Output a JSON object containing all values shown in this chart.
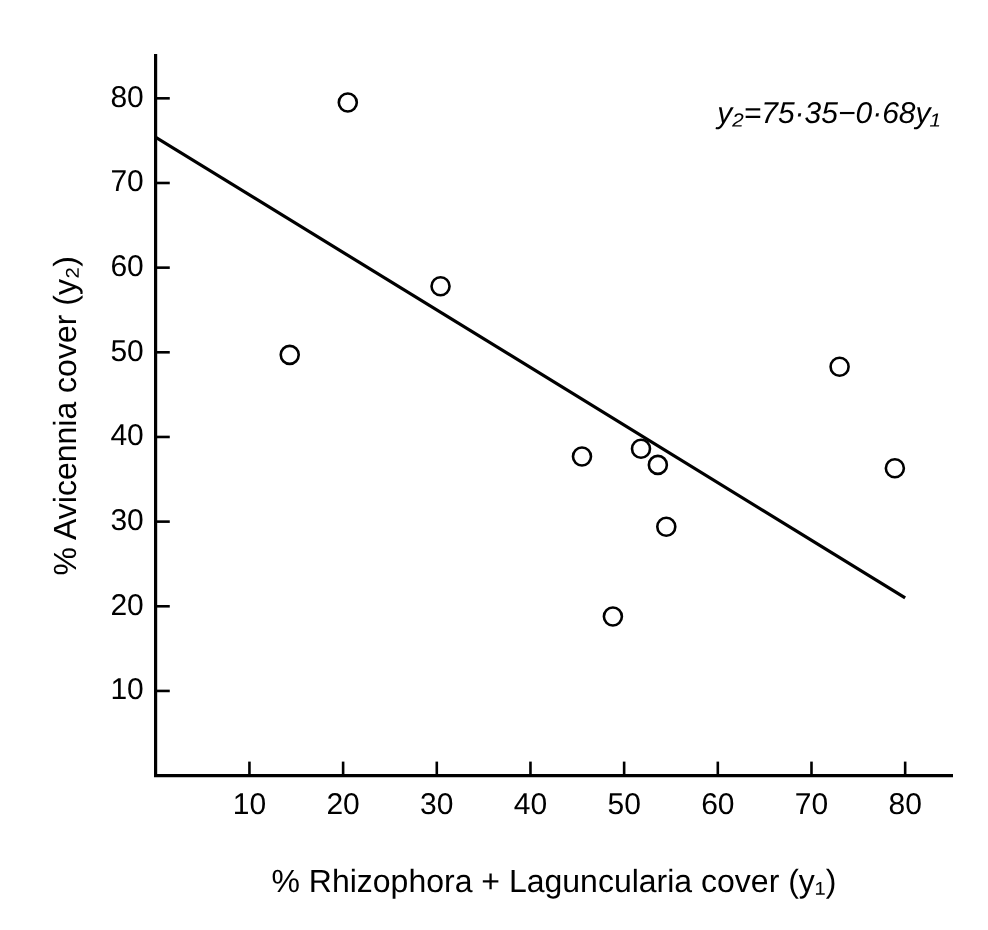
{
  "chart_data": {
    "type": "scatter",
    "xlabel": "% Rhizophora + Laguncularia cover (y₁)",
    "ylabel": "% Avicennia cover (y₂)",
    "annotations": [
      "y₂=75·35−0·68y₁"
    ],
    "xlim": [
      0,
      85
    ],
    "ylim": [
      0,
      85
    ],
    "xticks": [
      10,
      20,
      30,
      40,
      50,
      60,
      70,
      80
    ],
    "yticks": [
      10,
      20,
      30,
      40,
      50,
      60,
      70,
      80
    ],
    "grid": false,
    "legend": false,
    "marker": "circle",
    "series": [
      {
        "type": "scatter",
        "color": "#000000",
        "x": [
          14.3,
          20.5,
          30.4,
          45.5,
          48.8,
          51.8,
          53.6,
          54.5,
          73,
          78.9
        ],
        "values": [
          49.7,
          79.5,
          57.8,
          37.7,
          18.8,
          38.6,
          36.7,
          29.4,
          48.3,
          36.3
        ]
      },
      {
        "type": "line",
        "color": "#000000",
        "x": [
          0,
          80
        ],
        "values": [
          75.4,
          21
        ],
        "line_style": "solid",
        "marker": "none"
      }
    ]
  }
}
